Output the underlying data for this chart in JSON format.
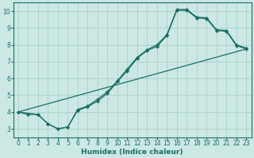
{
  "title": "",
  "xlabel": "Humidex (Indice chaleur)",
  "ylabel": "",
  "bg_color": "#cce8e4",
  "grid_color": "#aacfca",
  "line_color": "#1a6e64",
  "spine_color": "#1a6e64",
  "xlim": [
    -0.5,
    23.5
  ],
  "ylim": [
    2.5,
    10.5
  ],
  "xticks": [
    0,
    1,
    2,
    3,
    4,
    5,
    6,
    7,
    8,
    9,
    10,
    11,
    12,
    13,
    14,
    15,
    16,
    17,
    18,
    19,
    20,
    21,
    22,
    23
  ],
  "yticks": [
    3,
    4,
    5,
    6,
    7,
    8,
    9,
    10
  ],
  "line1_x": [
    0,
    1,
    2,
    3,
    4,
    5,
    6,
    7,
    8,
    9,
    10,
    11,
    12,
    13,
    14,
    15,
    16,
    17,
    18,
    19,
    20,
    21,
    22,
    23
  ],
  "line1_y": [
    4.0,
    3.85,
    3.85,
    3.3,
    3.0,
    3.1,
    4.15,
    4.35,
    4.75,
    5.2,
    5.85,
    6.55,
    7.25,
    7.7,
    8.0,
    8.6,
    10.1,
    10.1,
    9.65,
    9.6,
    8.9,
    8.85,
    8.0,
    7.8
  ],
  "line2_x": [
    0,
    2,
    3,
    4,
    5,
    6,
    7,
    8,
    9,
    10,
    11,
    12,
    13,
    14,
    15,
    16,
    17,
    18,
    19,
    20,
    21,
    22,
    23
  ],
  "line2_y": [
    4.0,
    3.85,
    3.3,
    3.0,
    3.1,
    4.1,
    4.3,
    4.65,
    5.1,
    5.8,
    6.45,
    7.2,
    7.65,
    7.9,
    8.55,
    10.05,
    10.05,
    9.6,
    9.55,
    8.85,
    8.8,
    7.95,
    7.75
  ],
  "line3_x": [
    0,
    23
  ],
  "line3_y": [
    4.0,
    7.75
  ],
  "tick_fontsize": 5.5,
  "xlabel_fontsize": 6.5
}
